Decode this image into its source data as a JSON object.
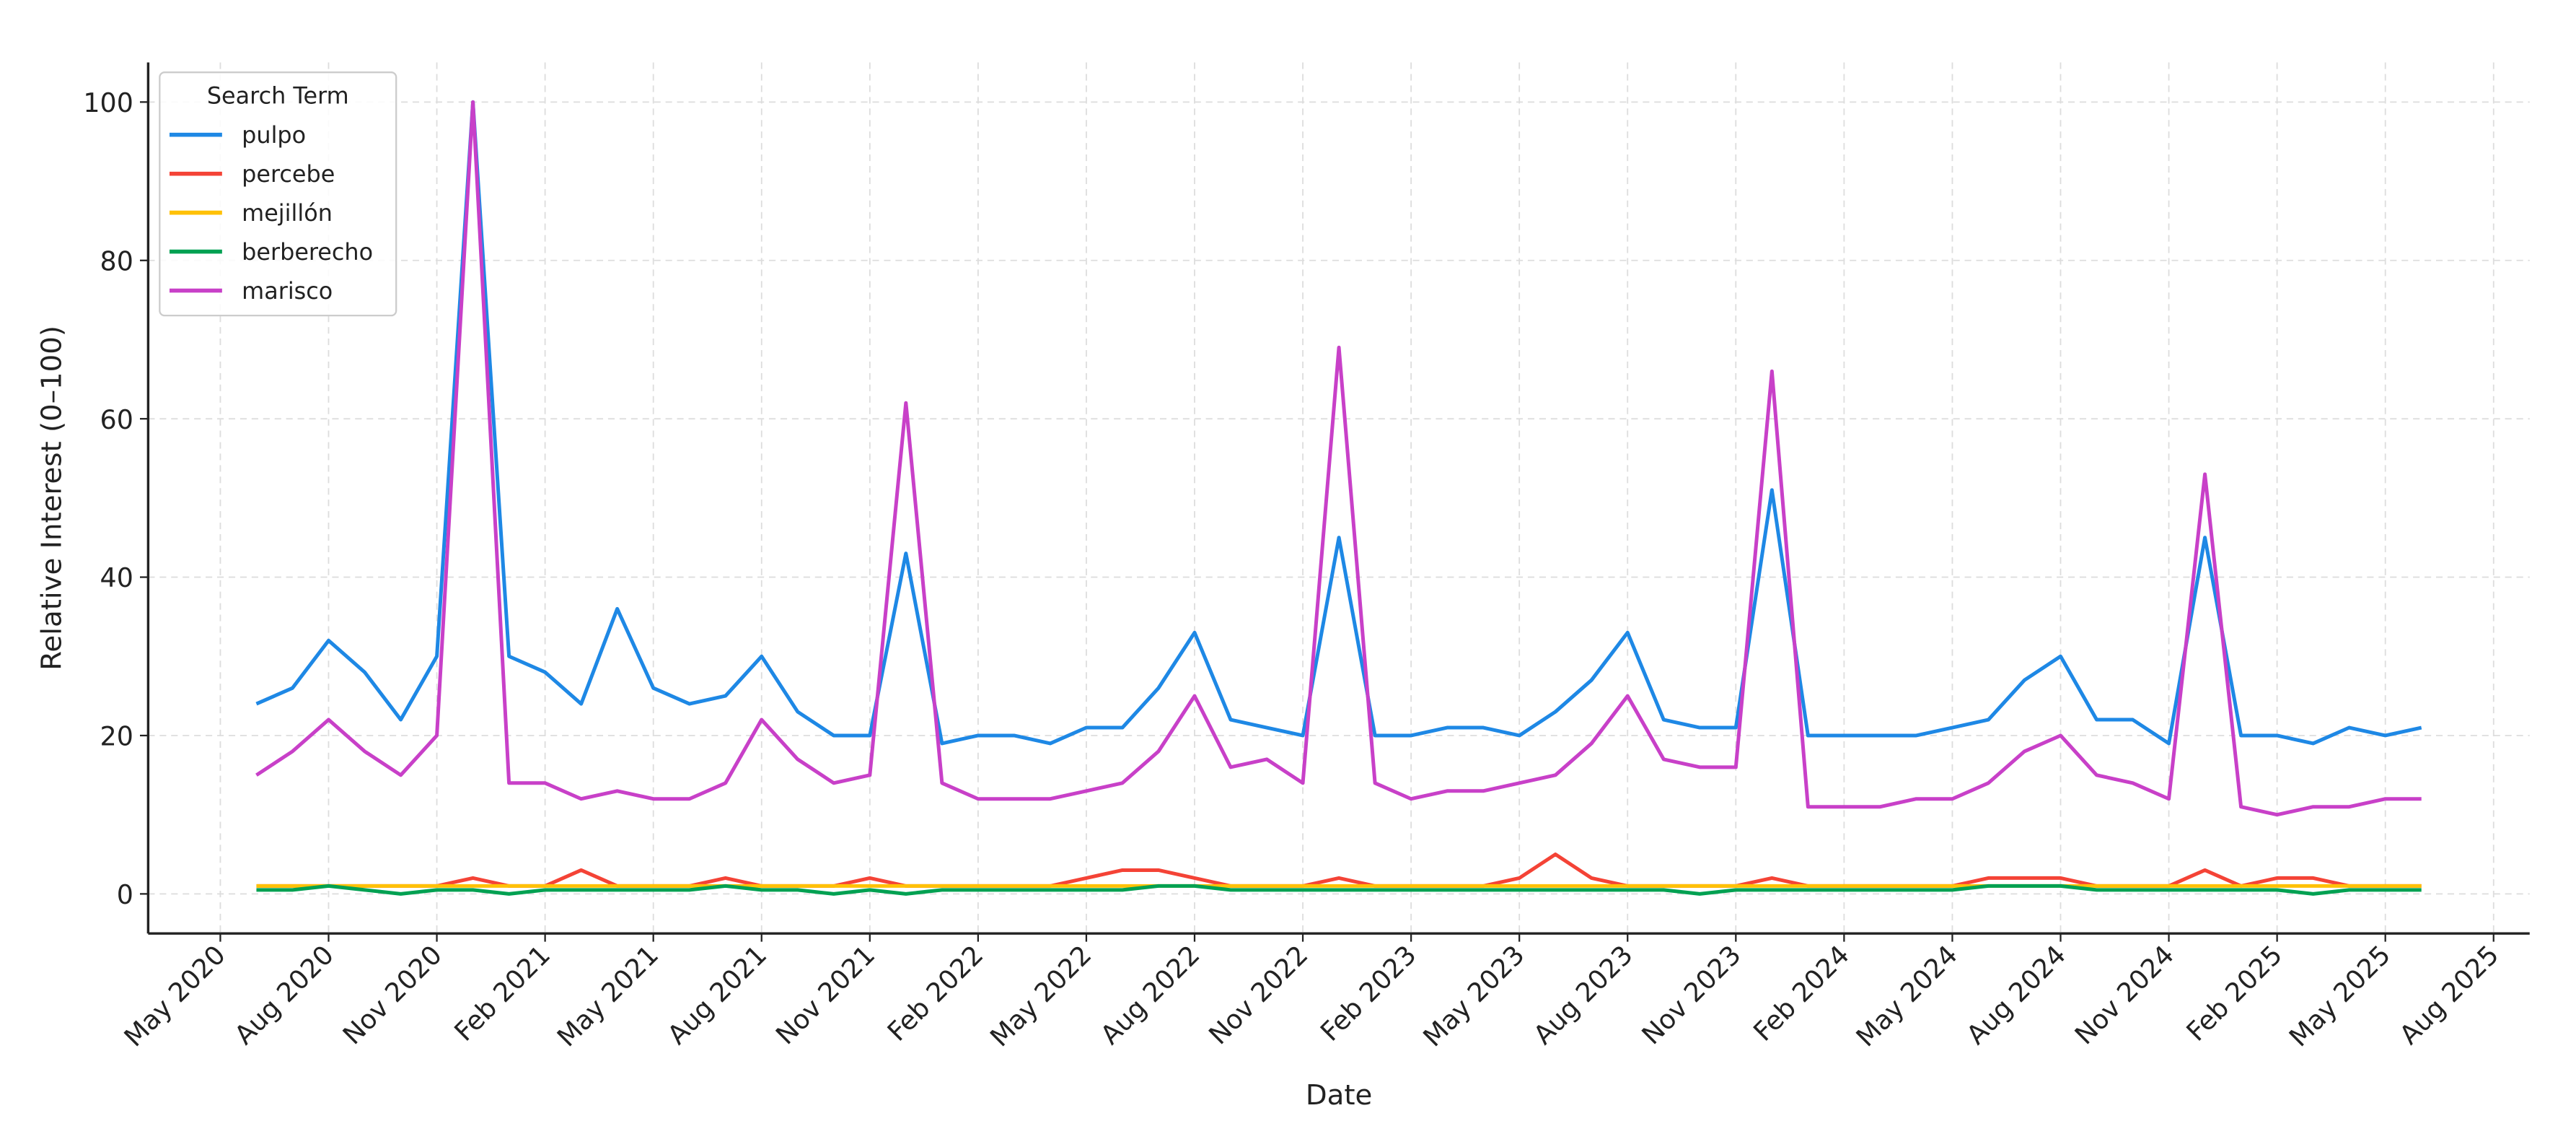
{
  "chart_data": {
    "type": "line",
    "x_label": "Date",
    "y_label": "Relative Interest (0–100)",
    "legend_title": "Search Term",
    "legend": "upper left",
    "grid": true,
    "x": [
      "2020-06",
      "2020-07",
      "2020-08",
      "2020-09",
      "2020-10",
      "2020-11",
      "2020-12",
      "2021-01",
      "2021-02",
      "2021-03",
      "2021-04",
      "2021-05",
      "2021-06",
      "2021-07",
      "2021-08",
      "2021-09",
      "2021-10",
      "2021-11",
      "2021-12",
      "2022-01",
      "2022-02",
      "2022-03",
      "2022-04",
      "2022-05",
      "2022-06",
      "2022-07",
      "2022-08",
      "2022-09",
      "2022-10",
      "2022-11",
      "2022-12",
      "2023-01",
      "2023-02",
      "2023-03",
      "2023-04",
      "2023-05",
      "2023-06",
      "2023-07",
      "2023-08",
      "2023-09",
      "2023-10",
      "2023-11",
      "2023-12",
      "2024-01",
      "2024-02",
      "2024-03",
      "2024-04",
      "2024-05",
      "2024-06",
      "2024-07",
      "2024-08",
      "2024-09",
      "2024-10",
      "2024-11",
      "2024-12",
      "2025-01",
      "2025-02",
      "2025-03",
      "2025-04",
      "2025-05",
      "2025-06"
    ],
    "xlim": [
      "2020-03",
      "2025-09"
    ],
    "xticks": [
      {
        "value": "2020-05",
        "label": "May 2020"
      },
      {
        "value": "2020-08",
        "label": "Aug 2020"
      },
      {
        "value": "2020-11",
        "label": "Nov 2020"
      },
      {
        "value": "2021-02",
        "label": "Feb 2021"
      },
      {
        "value": "2021-05",
        "label": "May 2021"
      },
      {
        "value": "2021-08",
        "label": "Aug 2021"
      },
      {
        "value": "2021-11",
        "label": "Nov 2021"
      },
      {
        "value": "2022-02",
        "label": "Feb 2022"
      },
      {
        "value": "2022-05",
        "label": "May 2022"
      },
      {
        "value": "2022-08",
        "label": "Aug 2022"
      },
      {
        "value": "2022-11",
        "label": "Nov 2022"
      },
      {
        "value": "2023-02",
        "label": "Feb 2023"
      },
      {
        "value": "2023-05",
        "label": "May 2023"
      },
      {
        "value": "2023-08",
        "label": "Aug 2023"
      },
      {
        "value": "2023-11",
        "label": "Nov 2023"
      },
      {
        "value": "2024-02",
        "label": "Feb 2024"
      },
      {
        "value": "2024-05",
        "label": "May 2024"
      },
      {
        "value": "2024-08",
        "label": "Aug 2024"
      },
      {
        "value": "2024-11",
        "label": "Nov 2024"
      },
      {
        "value": "2025-02",
        "label": "Feb 2025"
      },
      {
        "value": "2025-05",
        "label": "May 2025"
      },
      {
        "value": "2025-08",
        "label": "Aug 2025"
      }
    ],
    "ylim": [
      -5,
      105
    ],
    "yticks": [
      0,
      20,
      40,
      60,
      80,
      100
    ],
    "series": [
      {
        "name": "pulpo",
        "color": "#1e88e5",
        "values": [
          24,
          26,
          32,
          28,
          22,
          30,
          100,
          30,
          28,
          24,
          36,
          26,
          24,
          25,
          30,
          23,
          20,
          20,
          43,
          19,
          20,
          20,
          19,
          21,
          21,
          26,
          33,
          22,
          21,
          20,
          45,
          20,
          20,
          21,
          21,
          20,
          23,
          27,
          33,
          22,
          21,
          21,
          51,
          20,
          20,
          20,
          20,
          21,
          22,
          27,
          30,
          22,
          22,
          19,
          45,
          20,
          20,
          19,
          21,
          20,
          21
        ]
      },
      {
        "name": "percebe",
        "color": "#f44336",
        "values": [
          1,
          1,
          1,
          1,
          1,
          1,
          2,
          1,
          1,
          3,
          1,
          1,
          1,
          2,
          1,
          1,
          1,
          2,
          1,
          1,
          1,
          1,
          1,
          2,
          3,
          3,
          2,
          1,
          1,
          1,
          2,
          1,
          1,
          1,
          1,
          2,
          5,
          2,
          1,
          1,
          1,
          1,
          2,
          1,
          1,
          1,
          1,
          1,
          2,
          2,
          2,
          1,
          1,
          1,
          3,
          1,
          2,
          2,
          1,
          1,
          1
        ]
      },
      {
        "name": "mejillón",
        "color": "#ffc107",
        "values": [
          1,
          1,
          1,
          1,
          1,
          1,
          1,
          1,
          1,
          1,
          1,
          1,
          1,
          1,
          1,
          1,
          1,
          1,
          1,
          1,
          1,
          1,
          1,
          1,
          1,
          1,
          1,
          1,
          1,
          1,
          1,
          1,
          1,
          1,
          1,
          1,
          1,
          1,
          1,
          1,
          1,
          1,
          1,
          1,
          1,
          1,
          1,
          1,
          1,
          1,
          1,
          1,
          1,
          1,
          1,
          1,
          1,
          1,
          1,
          1,
          1
        ]
      },
      {
        "name": "berberecho",
        "color": "#00a152",
        "values": [
          0.5,
          0.5,
          1,
          0.5,
          0,
          0.5,
          0.5,
          0,
          0.5,
          0.5,
          0.5,
          0.5,
          0.5,
          1,
          0.5,
          0.5,
          0,
          0.5,
          0,
          0.5,
          0.5,
          0.5,
          0.5,
          0.5,
          0.5,
          1,
          1,
          0.5,
          0.5,
          0.5,
          0.5,
          0.5,
          0.5,
          0.5,
          0.5,
          0.5,
          0.5,
          0.5,
          0.5,
          0.5,
          0,
          0.5,
          0.5,
          0.5,
          0.5,
          0.5,
          0.5,
          0.5,
          1,
          1,
          1,
          0.5,
          0.5,
          0.5,
          0.5,
          0.5,
          0.5,
          0,
          0.5,
          0.5,
          0.5
        ]
      },
      {
        "name": "marisco",
        "color": "#c840c8",
        "values": [
          15,
          18,
          22,
          18,
          15,
          20,
          100,
          14,
          14,
          12,
          13,
          12,
          12,
          14,
          22,
          17,
          14,
          15,
          62,
          14,
          12,
          12,
          12,
          13,
          14,
          18,
          25,
          16,
          17,
          14,
          69,
          14,
          12,
          13,
          13,
          14,
          15,
          19,
          25,
          17,
          16,
          16,
          66,
          11,
          11,
          11,
          12,
          12,
          14,
          18,
          20,
          15,
          14,
          12,
          53,
          11,
          10,
          11,
          11,
          12,
          12
        ]
      }
    ]
  }
}
